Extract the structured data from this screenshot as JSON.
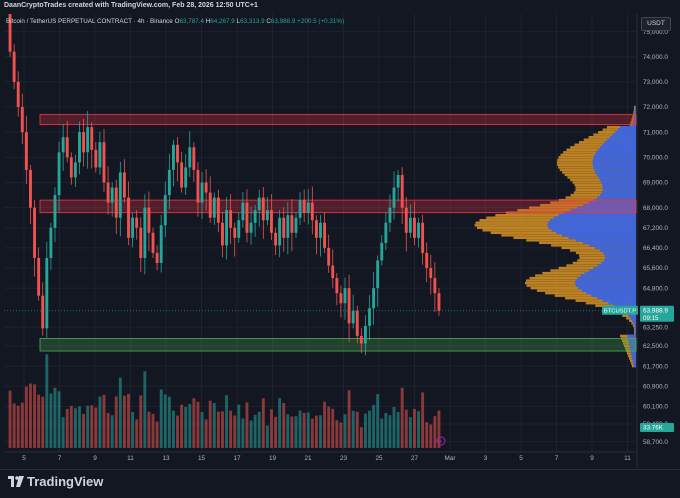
{
  "header": {
    "credit": "DaanCryptoTrades created with TradingView.com, Feb 28, 2026 12:50 UTC+1"
  },
  "legend": {
    "symbol": "Bitcoin / TetherUS PERPETUAL CONTRACT · 4h · Binance",
    "o_label": "O",
    "o_value": "63,787.4",
    "h_label": "H",
    "h_value": "64,267.9",
    "l_label": "L",
    "l_value": "63,313.9",
    "c_label": "C",
    "c_value": "63,988.9",
    "change": "+200.5 (+0.31%)"
  },
  "currency": "USDT",
  "price_tag": {
    "symbol": "BTCUSDT.P",
    "price": "63,988.9",
    "countdown": "09:15"
  },
  "volume_tag": "33.76K",
  "footer": {
    "brand": "TradingView"
  },
  "colors": {
    "bg": "#131722",
    "up": "#26a69a",
    "down": "#ef5350",
    "resistance_zone": "#f23645",
    "support_zone": "#4caf50",
    "profile_blue": "#2962ff",
    "profile_orange": "#f5a623"
  },
  "chart_data": {
    "type": "candlestick",
    "y_axis_ticks": [
      "75,000.0",
      "74,000.0",
      "73,000.0",
      "72,000.0",
      "71,000.0",
      "70,000.0",
      "69,000.0",
      "68,000.0",
      "67,200.0",
      "66,400.0",
      "65,600.0",
      "64,800.0",
      "63,250.0",
      "62,500.0",
      "61,700.0",
      "60,900.0",
      "60,100.0",
      "59,400.0",
      "58,700.0"
    ],
    "x_axis_ticks": [
      "5",
      "7",
      "9",
      "11",
      "13",
      "15",
      "17",
      "19",
      "21",
      "23",
      "25",
      "27",
      "Mar",
      "3",
      "5",
      "7",
      "9",
      "11"
    ],
    "zones": [
      {
        "type": "resistance",
        "low": 71300,
        "high": 71700
      },
      {
        "type": "resistance",
        "low": 67800,
        "high": 68300
      },
      {
        "type": "support",
        "low": 62300,
        "high": 62800
      }
    ],
    "price_path": [
      76000,
      74200,
      73000,
      72000,
      71000,
      69500,
      68000,
      66000,
      64500,
      63200,
      66000,
      67200,
      68500,
      70200,
      70800,
      70000,
      69200,
      69800,
      71000,
      70200,
      71200,
      70300,
      69600,
      70600,
      69000,
      68200,
      68800,
      67600,
      69400,
      68400,
      66800,
      67600,
      67200,
      66000,
      68000,
      67000,
      66200,
      65800,
      67300,
      68500,
      69500,
      70500,
      69800,
      68800,
      69600,
      70400,
      69500,
      68200,
      69000,
      68600,
      67600,
      68400,
      67400,
      66500,
      67900,
      67200,
      66800,
      67500,
      68200,
      67000,
      67400,
      67900,
      68400,
      67500,
      67900,
      67000,
      66500,
      67600,
      66800,
      67700,
      67000,
      67600,
      68300,
      67800,
      68200,
      67500,
      66800,
      67400,
      66400,
      65700,
      65200,
      64600,
      64200,
      64800,
      63400,
      63900,
      62900,
      62600,
      63300,
      64000,
      64800,
      65900,
      66600,
      67400,
      68000,
      68800,
      69300,
      68000,
      67000,
      67600,
      66800,
      67400,
      66200,
      65600,
      65200,
      64600,
      63900
    ],
    "volume_profile_range": [
      61700,
      72000
    ]
  }
}
